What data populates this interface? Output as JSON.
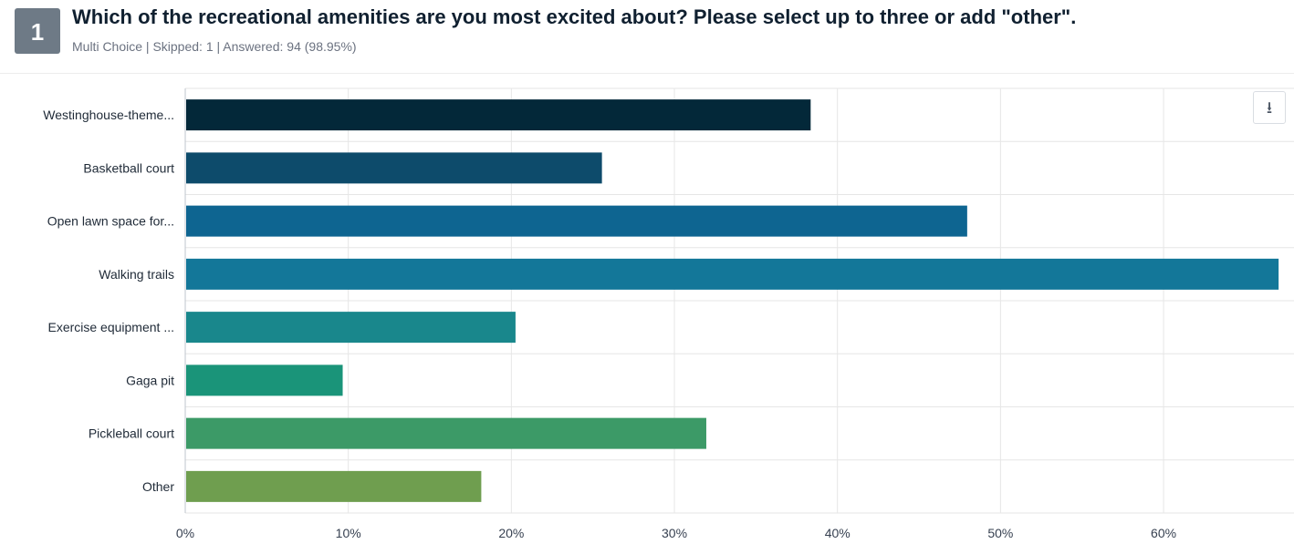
{
  "question": {
    "number": "1",
    "title": "Which of the recreational amenities are you most excited about? Please select up to three or add \"other\".",
    "meta": "Multi Choice | Skipped: 1 | Answered: 94 (98.95%)"
  },
  "toolbar": {
    "download_icon": "download-icon",
    "download_glyph": "⭳"
  },
  "chart_data": {
    "type": "bar",
    "orientation": "horizontal",
    "categories": [
      "Westinghouse-theme...",
      "Basketball court",
      "Open lawn space for...",
      "Walking trails",
      "Exercise equipment ...",
      "Gaga pit",
      "Pickleball court",
      "Other"
    ],
    "values": [
      38.3,
      25.5,
      47.9,
      67.0,
      20.2,
      9.6,
      31.9,
      18.1
    ],
    "colors": [
      "#032839",
      "#0d4b6b",
      "#0e6591",
      "#137799",
      "#19878c",
      "#1a9479",
      "#3c9a67",
      "#6f9e4f"
    ],
    "xlim": [
      0,
      68
    ],
    "xticks": [
      0,
      10,
      20,
      30,
      40,
      50,
      60
    ],
    "xtick_labels": [
      "0%",
      "10%",
      "20%",
      "30%",
      "40%",
      "50%",
      "60%"
    ],
    "grid": true,
    "legend": "none"
  }
}
